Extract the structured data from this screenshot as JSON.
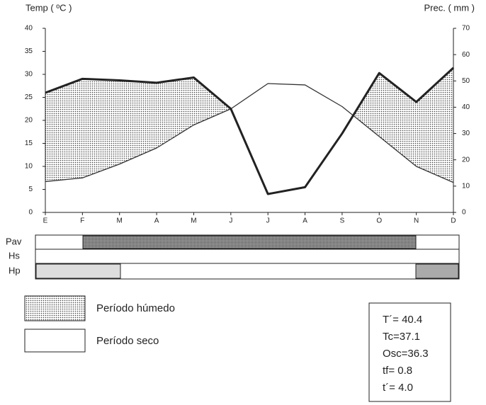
{
  "chart_data": {
    "type": "line",
    "ylabel": "Temp ( ºC )",
    "y2label": "Prec. ( mm )",
    "categories": [
      "E",
      "F",
      "M",
      "A",
      "M",
      "J",
      "J",
      "A",
      "S",
      "O",
      "N",
      "D"
    ],
    "series": [
      {
        "name": "Temp",
        "color": "#333333",
        "axis": "y",
        "values": [
          6.7,
          7.5,
          10.5,
          14,
          19,
          22.5,
          28,
          27.7,
          23,
          16.5,
          10,
          6.5
        ]
      },
      {
        "name": "Prec",
        "color": "#222222",
        "axis": "y2",
        "values": [
          45.5,
          50.8,
          50.2,
          49.3,
          51.3,
          39.4,
          7,
          9.6,
          30,
          53,
          42,
          55
        ]
      }
    ],
    "ylim": [
      0,
      40
    ],
    "yticks": [
      0,
      5,
      10,
      15,
      20,
      25,
      30,
      35,
      40
    ],
    "y2lim": [
      0,
      70
    ],
    "y2ticks": [
      0,
      10,
      20,
      30,
      40,
      50,
      60,
      70
    ]
  },
  "rows": [
    "Pav",
    "Hs",
    "Hp"
  ],
  "legend": [
    "Período húmedo",
    "Período seco"
  ],
  "stats": [
    "T´= 40.4",
    "Tc=37.1",
    "Osc=36.3",
    "tf=  0.8",
    "t´=  4.0"
  ]
}
